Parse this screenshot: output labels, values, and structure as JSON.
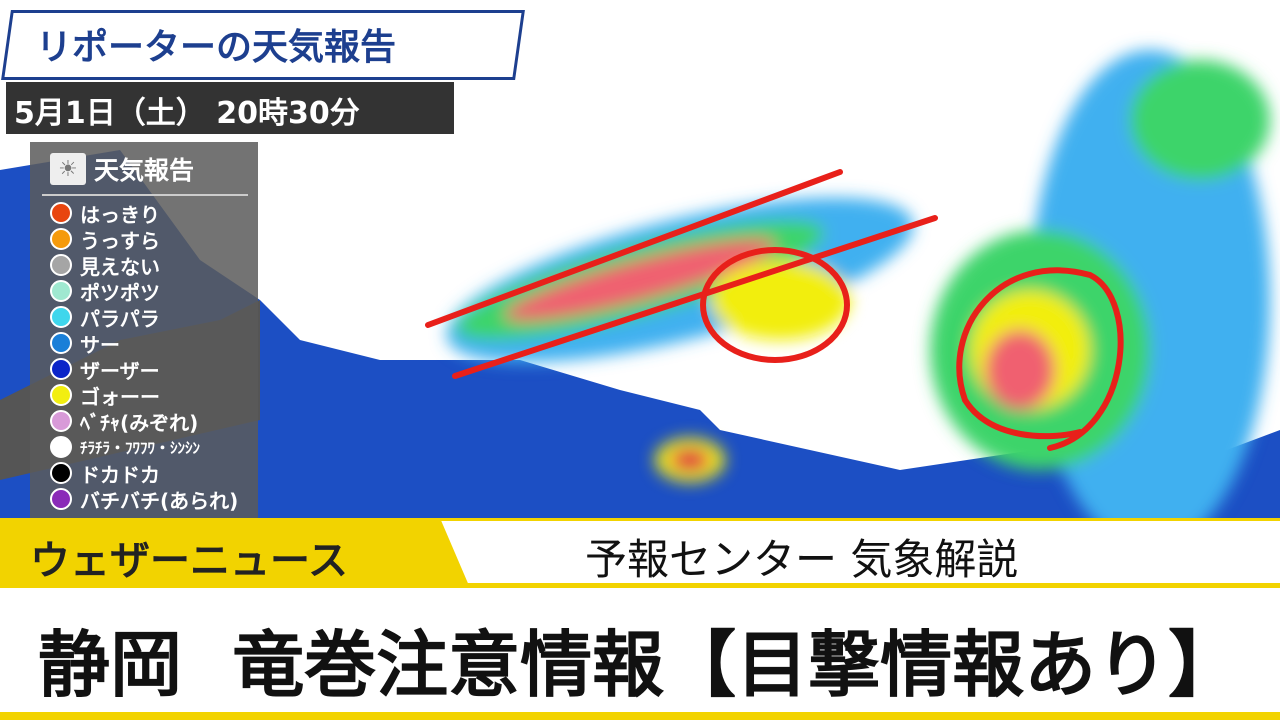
{
  "header": {
    "title": "リポーターの天気報告",
    "datetime": "5月1日（土） 20時30分"
  },
  "legend": {
    "icon": "sun-icon",
    "title": "天気報告",
    "items": [
      {
        "label": "はっきり",
        "color": "#e8450f"
      },
      {
        "label": "うっすら",
        "color": "#f59a0c"
      },
      {
        "label": "見えない",
        "color": "#a5a5a5"
      },
      {
        "label": "ポツポツ",
        "color": "#9fe8d0"
      },
      {
        "label": "パラパラ",
        "color": "#3fd6ec"
      },
      {
        "label": "サー",
        "color": "#1a7fd8"
      },
      {
        "label": "ザーザー",
        "color": "#0b24c8"
      },
      {
        "label": "ゴォーー",
        "color": "#f2ee10"
      },
      {
        "label": "ﾍﾞﾁｬ(みぞれ)",
        "color": "#d89ad8"
      },
      {
        "label": "ﾁﾗﾁﾗ・ﾌﾜﾌﾜ・ｼﾝｼﾝ",
        "color": "#ffffff"
      },
      {
        "label": "ドカドカ",
        "color": "#000000"
      },
      {
        "label": "バチバチ(あられ)",
        "color": "#8a2ab8"
      }
    ]
  },
  "lower_third": {
    "brand": "ウェザーニュース",
    "subtitle": "予報センター 気象解説",
    "headline": "静岡  竜巻注意情報【目撃情報あり】"
  },
  "colors": {
    "sea": "#1c4fc4",
    "land": "#ffffff",
    "brand_yellow": "#f2d300",
    "annotation_red": "#e8201a"
  }
}
